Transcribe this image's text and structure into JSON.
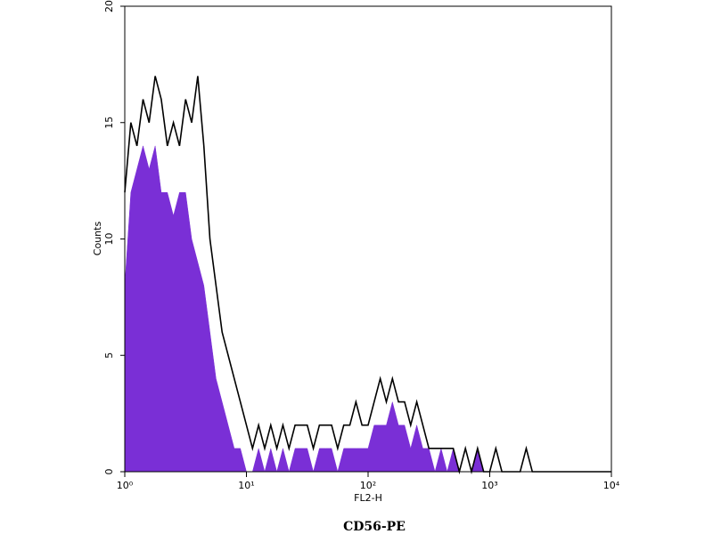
{
  "chart_data": {
    "type": "area",
    "title": "CD56-PE",
    "x_label": "FL2-H",
    "y_label": "Counts",
    "xscale": "log",
    "xlim": [
      1,
      10000
    ],
    "xticks": [
      {
        "value": 1,
        "label": "10⁰"
      },
      {
        "value": 10,
        "label": "10¹"
      },
      {
        "value": 100,
        "label": "10²"
      },
      {
        "value": 1000,
        "label": "10³"
      },
      {
        "value": 10000,
        "label": "10⁴"
      }
    ],
    "ylim": [
      0,
      20
    ],
    "yticks": [
      0,
      5,
      10,
      15,
      20
    ],
    "x": [
      1,
      1.122,
      1.259,
      1.413,
      1.585,
      1.778,
      1.995,
      2.239,
      2.512,
      2.818,
      3.162,
      3.548,
      3.981,
      4.467,
      5.012,
      5.623,
      6.31,
      7.079,
      7.943,
      8.913,
      10,
      11.22,
      12.59,
      14.13,
      15.85,
      17.78,
      19.95,
      22.39,
      25.12,
      28.18,
      31.62,
      35.48,
      39.81,
      44.67,
      50.12,
      56.23,
      63.1,
      70.79,
      79.43,
      89.13,
      100,
      112.2,
      125.9,
      141.3,
      158.5,
      177.8,
      199.5,
      223.9,
      251.2,
      281.8,
      316.2,
      354.8,
      398.1,
      446.7,
      501.2,
      562.3,
      631,
      707.9,
      794.3,
      891.3,
      1000,
      1122,
      1259,
      1413,
      1585,
      1778,
      1995,
      2239,
      2512,
      2818,
      3162,
      3548,
      3981,
      4467,
      5012,
      5623,
      6310,
      7079,
      7943,
      8913,
      10000
    ],
    "series": [
      {
        "color": "#7a2fd6",
        "fill": true,
        "values": [
          8,
          12,
          13,
          14,
          13,
          14,
          12,
          12,
          11,
          12,
          12,
          10,
          9,
          8,
          6,
          4,
          3,
          2,
          1,
          1,
          0,
          0,
          1,
          0,
          1,
          0,
          1,
          0,
          1,
          1,
          1,
          0,
          1,
          1,
          1,
          0,
          1,
          1,
          1,
          1,
          1,
          2,
          2,
          2,
          3,
          2,
          2,
          1,
          2,
          1,
          1,
          0,
          1,
          0,
          1,
          0,
          0,
          0,
          1,
          0,
          0,
          0,
          0,
          0,
          0,
          0,
          0,
          0,
          0,
          0,
          0,
          0,
          0,
          0,
          0,
          0,
          0,
          0,
          0,
          0,
          0
        ]
      },
      {
        "color": "#000000",
        "fill": false,
        "values": [
          12,
          15,
          14,
          16,
          15,
          17,
          16,
          14,
          15,
          14,
          16,
          15,
          17,
          14,
          10,
          8,
          6,
          5,
          4,
          3,
          2,
          1,
          2,
          1,
          2,
          1,
          2,
          1,
          2,
          2,
          2,
          1,
          2,
          2,
          2,
          1,
          2,
          2,
          3,
          2,
          2,
          3,
          4,
          3,
          4,
          3,
          3,
          2,
          3,
          2,
          1,
          1,
          1,
          1,
          1,
          0,
          1,
          0,
          1,
          0,
          0,
          1,
          0,
          0,
          0,
          0,
          1,
          0,
          0,
          0,
          0,
          0,
          0,
          0,
          0,
          0,
          0,
          0,
          0,
          0,
          0
        ]
      }
    ]
  }
}
